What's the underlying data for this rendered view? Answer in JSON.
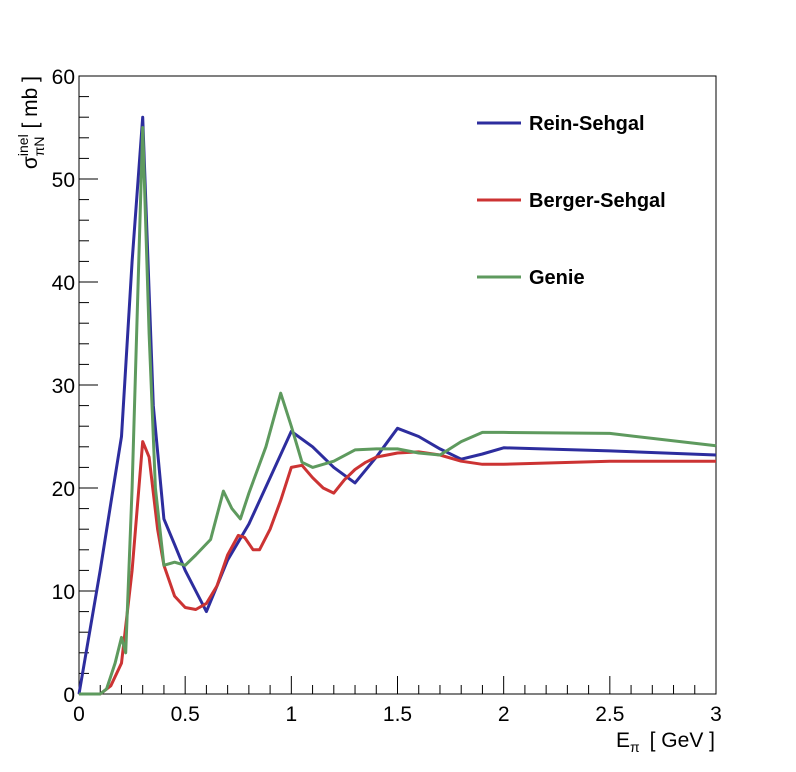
{
  "chart_data": {
    "type": "line",
    "xlabel": {
      "main": "E",
      "sub": "π",
      "unit": "[ GeV ]"
    },
    "ylabel": {
      "main": "σ",
      "sup": "inel",
      "sub": "πN",
      "unit": "[ mb ]"
    },
    "xlim": [
      0,
      3
    ],
    "ylim": [
      0,
      60
    ],
    "x_ticks": [
      "0",
      "0.5",
      "1",
      "1.5",
      "2",
      "2.5",
      "3"
    ],
    "y_ticks": [
      "0",
      "10",
      "20",
      "30",
      "40",
      "50",
      "60"
    ],
    "grid": false,
    "legend_position": "top-right",
    "series": [
      {
        "name": "Rein-Sehgal",
        "color": "#2d2d9e",
        "points": [
          [
            0,
            0
          ],
          [
            0.05,
            6
          ],
          [
            0.1,
            12
          ],
          [
            0.15,
            18.5
          ],
          [
            0.2,
            25
          ],
          [
            0.25,
            42
          ],
          [
            0.3,
            56
          ],
          [
            0.35,
            28
          ],
          [
            0.4,
            17
          ],
          [
            0.45,
            14.5
          ],
          [
            0.5,
            12
          ],
          [
            0.55,
            10
          ],
          [
            0.6,
            8
          ],
          [
            0.65,
            10.5
          ],
          [
            0.7,
            13
          ],
          [
            0.8,
            16.5
          ],
          [
            0.9,
            21
          ],
          [
            1.0,
            25.5
          ],
          [
            1.1,
            24
          ],
          [
            1.2,
            22
          ],
          [
            1.3,
            20.5
          ],
          [
            1.4,
            23
          ],
          [
            1.5,
            25.8
          ],
          [
            1.6,
            25
          ],
          [
            1.7,
            23.8
          ],
          [
            1.8,
            22.8
          ],
          [
            1.9,
            23.3
          ],
          [
            2.0,
            23.9
          ],
          [
            2.5,
            23.6
          ],
          [
            3.0,
            23.2
          ]
        ]
      },
      {
        "name": "Berger-Sehgal",
        "color": "#cc3333",
        "points": [
          [
            0,
            0
          ],
          [
            0.1,
            0
          ],
          [
            0.15,
            0.8
          ],
          [
            0.2,
            3
          ],
          [
            0.25,
            12
          ],
          [
            0.3,
            24.5
          ],
          [
            0.33,
            23
          ],
          [
            0.37,
            16
          ],
          [
            0.4,
            12.5
          ],
          [
            0.45,
            9.5
          ],
          [
            0.5,
            8.4
          ],
          [
            0.55,
            8.2
          ],
          [
            0.6,
            8.8
          ],
          [
            0.65,
            10.5
          ],
          [
            0.7,
            13.5
          ],
          [
            0.75,
            15.4
          ],
          [
            0.78,
            15.2
          ],
          [
            0.82,
            14
          ],
          [
            0.85,
            14
          ],
          [
            0.9,
            16
          ],
          [
            0.95,
            18.8
          ],
          [
            1.0,
            22
          ],
          [
            1.05,
            22.2
          ],
          [
            1.1,
            21
          ],
          [
            1.15,
            20
          ],
          [
            1.2,
            19.5
          ],
          [
            1.25,
            20.8
          ],
          [
            1.3,
            21.8
          ],
          [
            1.35,
            22.5
          ],
          [
            1.4,
            23
          ],
          [
            1.5,
            23.4
          ],
          [
            1.6,
            23.5
          ],
          [
            1.7,
            23.2
          ],
          [
            1.8,
            22.6
          ],
          [
            1.9,
            22.3
          ],
          [
            2.0,
            22.3
          ],
          [
            2.5,
            22.6
          ],
          [
            3.0,
            22.6
          ]
        ]
      },
      {
        "name": "Genie",
        "color": "#5e9a5e",
        "points": [
          [
            0,
            0
          ],
          [
            0.1,
            0
          ],
          [
            0.13,
            0.5
          ],
          [
            0.17,
            3
          ],
          [
            0.2,
            5.5
          ],
          [
            0.22,
            4
          ],
          [
            0.25,
            20
          ],
          [
            0.3,
            55
          ],
          [
            0.33,
            35
          ],
          [
            0.36,
            20
          ],
          [
            0.4,
            12.5
          ],
          [
            0.45,
            12.8
          ],
          [
            0.5,
            12.5
          ],
          [
            0.55,
            13.5
          ],
          [
            0.62,
            15
          ],
          [
            0.68,
            19.7
          ],
          [
            0.72,
            18
          ],
          [
            0.76,
            17
          ],
          [
            0.8,
            19.5
          ],
          [
            0.88,
            24
          ],
          [
            0.95,
            29.2
          ],
          [
            1.0,
            26
          ],
          [
            1.05,
            22.5
          ],
          [
            1.1,
            22
          ],
          [
            1.2,
            22.6
          ],
          [
            1.3,
            23.7
          ],
          [
            1.4,
            23.8
          ],
          [
            1.5,
            23.8
          ],
          [
            1.6,
            23.4
          ],
          [
            1.7,
            23.2
          ],
          [
            1.8,
            24.5
          ],
          [
            1.9,
            25.4
          ],
          [
            2.0,
            25.4
          ],
          [
            2.5,
            25.3
          ],
          [
            3.0,
            24.1
          ]
        ]
      }
    ]
  }
}
